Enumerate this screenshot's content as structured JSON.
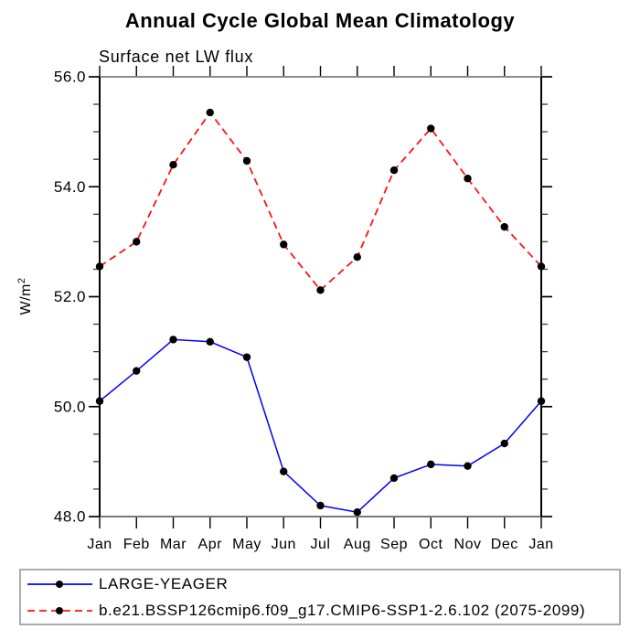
{
  "chart_data": {
    "type": "line",
    "title": "Annual Cycle Global Mean Climatology",
    "subtitle": "Surface net LW flux",
    "ylabel": "W/m²",
    "ylabel_base": "W/m",
    "ylabel_exponent": "2",
    "x_categories": [
      "Jan",
      "Feb",
      "Mar",
      "Apr",
      "May",
      "Jun",
      "Jul",
      "Aug",
      "Sep",
      "Oct",
      "Nov",
      "Dec",
      "Jan"
    ],
    "ylim": [
      48.0,
      56.0
    ],
    "y_major_ticks": [
      48.0,
      50.0,
      52.0,
      54.0,
      56.0
    ],
    "y_tick_labels": [
      "48.0",
      "50.0",
      "52.0",
      "54.0",
      "56.0"
    ],
    "y_minor_tick_step": 0.5,
    "grid": false,
    "legend_position": "bottom-left box",
    "series": [
      {
        "name": "LARGE-YEAGER",
        "line_color": "#0000ff",
        "line_style": "solid",
        "marker": "filled-circle",
        "marker_color": "#000000",
        "values": [
          50.1,
          50.65,
          51.22,
          51.18,
          50.9,
          48.82,
          48.2,
          48.08,
          48.7,
          48.95,
          48.92,
          49.33,
          50.1
        ]
      },
      {
        "name": "b.e21.BSSP126cmip6.f09_g17.CMIP6-SSP1-2.6.102 (2075-2099)",
        "line_color": "#ff1212",
        "line_style": "dashed",
        "marker": "filled-circle",
        "marker_color": "#000000",
        "values": [
          52.55,
          53.0,
          54.4,
          55.35,
          54.47,
          52.95,
          52.12,
          52.72,
          54.3,
          55.06,
          54.15,
          53.27,
          52.55
        ]
      }
    ]
  }
}
